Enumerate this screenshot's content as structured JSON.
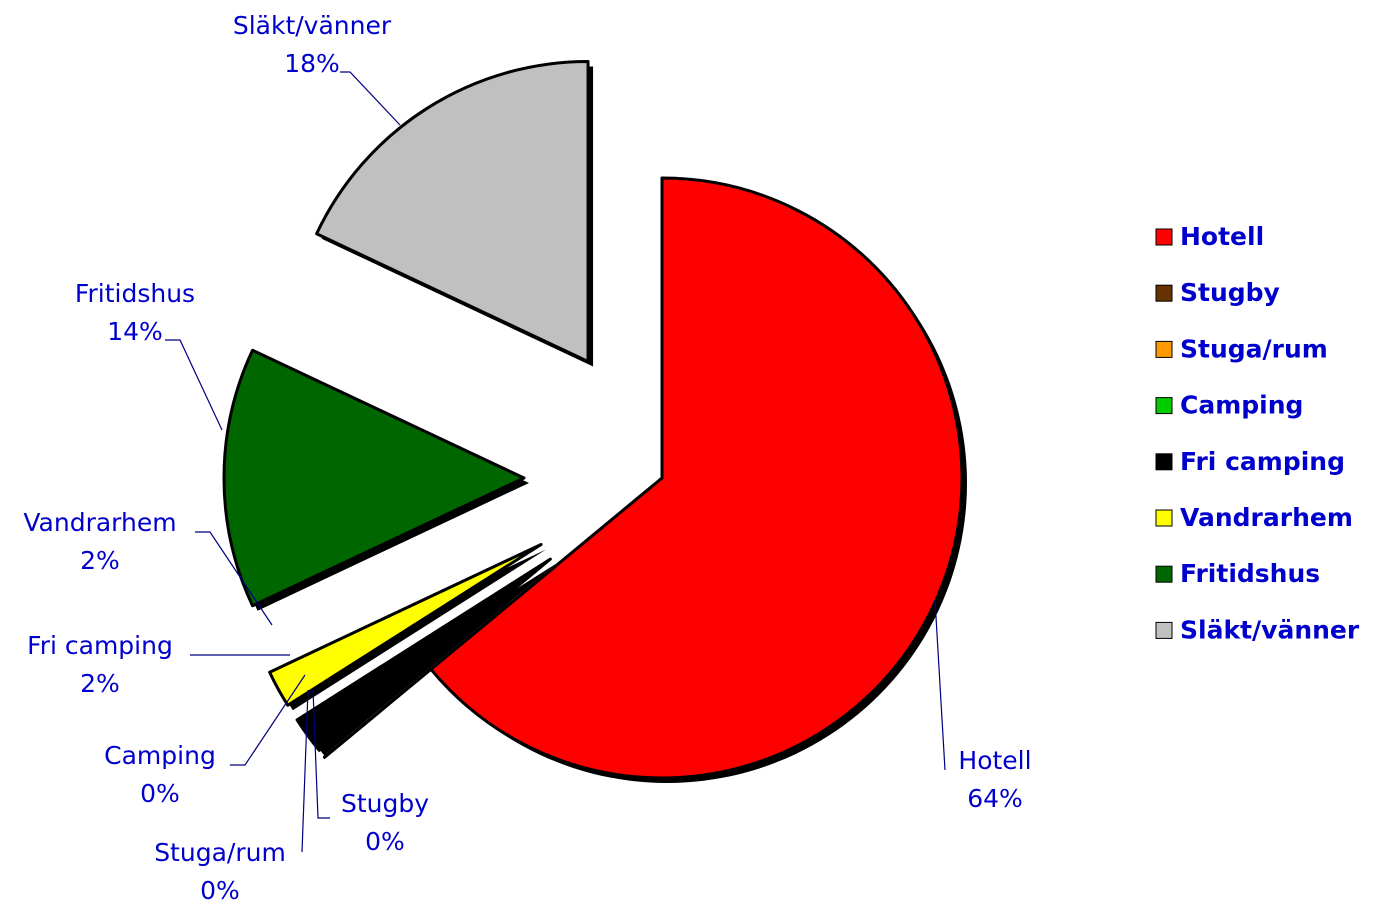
{
  "chart_data": {
    "type": "pie",
    "categories": [
      "Hotell",
      "Stugby",
      "Stuga/rum",
      "Camping",
      "Fri camping",
      "Vandrarhem",
      "Fritidshus",
      "Släkt/vänner"
    ],
    "values": [
      64,
      0,
      0,
      0,
      2,
      2,
      14,
      18
    ],
    "value_labels": [
      "64%",
      "0%",
      "0%",
      "0%",
      "2%",
      "2%",
      "14%",
      "18%"
    ],
    "colors": [
      "#ff0000",
      "#663300",
      "#ff9900",
      "#00cc00",
      "#000000",
      "#ffff00",
      "#006600",
      "#c0c0c0"
    ],
    "legend": "right"
  }
}
